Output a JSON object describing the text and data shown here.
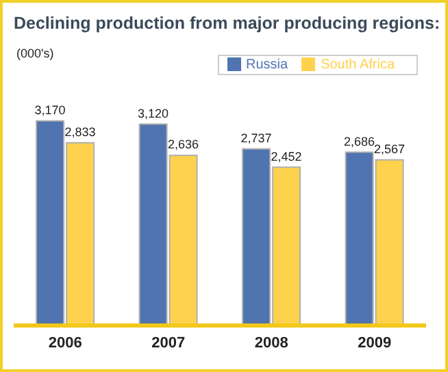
{
  "chart_data": {
    "type": "bar",
    "title": "Declining production from major producing regions:",
    "subtitle": "(000's)",
    "categories": [
      "2006",
      "2007",
      "2008",
      "2009"
    ],
    "series": [
      {
        "name": "Russia",
        "color": "#4f74b0",
        "values": [
          3170,
          3120,
          2737,
          2686
        ],
        "value_labels": [
          "3,170",
          "3,120",
          "2,737",
          "2,686"
        ]
      },
      {
        "name": "South Africa",
        "color": "#ffd24d",
        "values": [
          2833,
          2636,
          2452,
          2567
        ],
        "value_labels": [
          "2,833",
          "2,636",
          "2,452",
          "2,567"
        ]
      }
    ],
    "legend": "top right",
    "grid": false
  }
}
